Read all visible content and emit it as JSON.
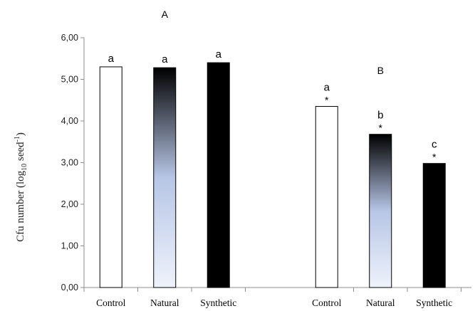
{
  "chart_data": {
    "type": "bar",
    "ylabel": {
      "main": "Cfu number (log",
      "subscript": "10",
      "middle": " seed",
      "superscript": "-1",
      "end": ")"
    },
    "ylim": [
      0,
      6
    ],
    "yticks": [
      "0,00",
      "1,00",
      "2,00",
      "3,00",
      "4,00",
      "5,00",
      "6,00"
    ],
    "grid": false,
    "groups": [
      {
        "panel_label": "A",
        "bars": [
          {
            "category": "Control",
            "value": 5.3,
            "letter": "a",
            "asterisk": "",
            "fill": "white"
          },
          {
            "category": "Natural",
            "value": 5.28,
            "letter": "a",
            "asterisk": "",
            "fill": "gradient"
          },
          {
            "category": "Synthetic",
            "value": 5.4,
            "letter": "a",
            "asterisk": "",
            "fill": "black"
          }
        ]
      },
      {
        "panel_label": "B",
        "bars": [
          {
            "category": "Control",
            "value": 4.35,
            "letter": "a",
            "asterisk": "*",
            "fill": "white"
          },
          {
            "category": "Natural",
            "value": 3.68,
            "letter": "b",
            "asterisk": "*",
            "fill": "gradient"
          },
          {
            "category": "Synthetic",
            "value": 2.98,
            "letter": "c",
            "asterisk": "*",
            "fill": "black"
          }
        ]
      }
    ],
    "colors": {
      "bar_outline": "#000000",
      "white_fill": "#ffffff",
      "black_fill": "#000000",
      "gradient_top": "#000000",
      "gradient_mid": "#b7c6e6",
      "gradient_bottom": "#eef2fa",
      "axis": "#8c8c8c"
    }
  }
}
